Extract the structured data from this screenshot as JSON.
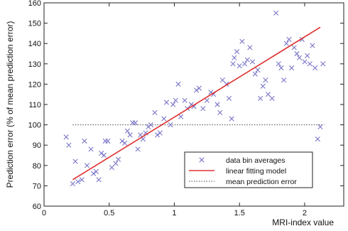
{
  "chart_data": {
    "type": "scatter",
    "title": "",
    "xlabel": "MRI-index value",
    "ylabel": "Prediction error (% of mean prediction error)",
    "xlim": [
      0,
      2.3
    ],
    "ylim": [
      60,
      160
    ],
    "xticks": [
      "0",
      "0.5",
      "1",
      "1.5",
      "2"
    ],
    "yticks": [
      "60",
      "70",
      "80",
      "90",
      "100",
      "110",
      "120",
      "130",
      "140",
      "150",
      "160"
    ],
    "grid": false,
    "legend_position": "bottom-right",
    "colors": {
      "markers": "#7a76c8",
      "fit": "#e03030",
      "mean": "#444444",
      "axis": "#222222"
    },
    "series": [
      {
        "name": "data bin averages",
        "kind": "markers",
        "points": [
          [
            0.17,
            94
          ],
          [
            0.19,
            90
          ],
          [
            0.22,
            71
          ],
          [
            0.24,
            82
          ],
          [
            0.26,
            72
          ],
          [
            0.29,
            73
          ],
          [
            0.31,
            92
          ],
          [
            0.33,
            80
          ],
          [
            0.36,
            88
          ],
          [
            0.38,
            76
          ],
          [
            0.4,
            77
          ],
          [
            0.42,
            73
          ],
          [
            0.44,
            86
          ],
          [
            0.46,
            85
          ],
          [
            0.47,
            92
          ],
          [
            0.49,
            92
          ],
          [
            0.52,
            79
          ],
          [
            0.55,
            81
          ],
          [
            0.57,
            83
          ],
          [
            0.6,
            92
          ],
          [
            0.62,
            91
          ],
          [
            0.64,
            97
          ],
          [
            0.66,
            95
          ],
          [
            0.68,
            101
          ],
          [
            0.7,
            101
          ],
          [
            0.72,
            88
          ],
          [
            0.74,
            95
          ],
          [
            0.76,
            93
          ],
          [
            0.78,
            96
          ],
          [
            0.8,
            99
          ],
          [
            0.82,
            100
          ],
          [
            0.85,
            106
          ],
          [
            0.87,
            95
          ],
          [
            0.89,
            96
          ],
          [
            0.92,
            103
          ],
          [
            0.94,
            111
          ],
          [
            0.97,
            100
          ],
          [
            0.99,
            110
          ],
          [
            1.01,
            112
          ],
          [
            1.03,
            120
          ],
          [
            1.05,
            104
          ],
          [
            1.08,
            112
          ],
          [
            1.1,
            108
          ],
          [
            1.13,
            110
          ],
          [
            1.15,
            109
          ],
          [
            1.17,
            117
          ],
          [
            1.19,
            118
          ],
          [
            1.22,
            108
          ],
          [
            1.25,
            112
          ],
          [
            1.28,
            116
          ],
          [
            1.3,
            115
          ],
          [
            1.33,
            110
          ],
          [
            1.35,
            106
          ],
          [
            1.37,
            122
          ],
          [
            1.4,
            120
          ],
          [
            1.42,
            113
          ],
          [
            1.44,
            103
          ],
          [
            1.45,
            130
          ],
          [
            1.46,
            133
          ],
          [
            1.48,
            136
          ],
          [
            1.5,
            129
          ],
          [
            1.52,
            141
          ],
          [
            1.54,
            130
          ],
          [
            1.56,
            132
          ],
          [
            1.58,
            138
          ],
          [
            1.6,
            131
          ],
          [
            1.62,
            125
          ],
          [
            1.64,
            127
          ],
          [
            1.66,
            113
          ],
          [
            1.68,
            119
          ],
          [
            1.7,
            122
          ],
          [
            1.72,
            115
          ],
          [
            1.75,
            113
          ],
          [
            1.78,
            155
          ],
          [
            1.8,
            130
          ],
          [
            1.82,
            128
          ],
          [
            1.84,
            122
          ],
          [
            1.86,
            140
          ],
          [
            1.88,
            142
          ],
          [
            1.9,
            128
          ],
          [
            1.92,
            138
          ],
          [
            1.94,
            135
          ],
          [
            1.96,
            133
          ],
          [
            1.98,
            142
          ],
          [
            2.0,
            131
          ],
          [
            2.02,
            134
          ],
          [
            2.04,
            130
          ],
          [
            2.06,
            139
          ],
          [
            2.08,
            128
          ],
          [
            2.1,
            93
          ],
          [
            2.12,
            99
          ],
          [
            2.14,
            130
          ]
        ]
      },
      {
        "name": "linear fitting model",
        "kind": "line",
        "points": [
          [
            0.22,
            73
          ],
          [
            2.12,
            148
          ]
        ]
      },
      {
        "name": "mean prediction error",
        "kind": "dotted",
        "points": [
          [
            0.22,
            100
          ],
          [
            2.15,
            100
          ]
        ]
      }
    ]
  }
}
